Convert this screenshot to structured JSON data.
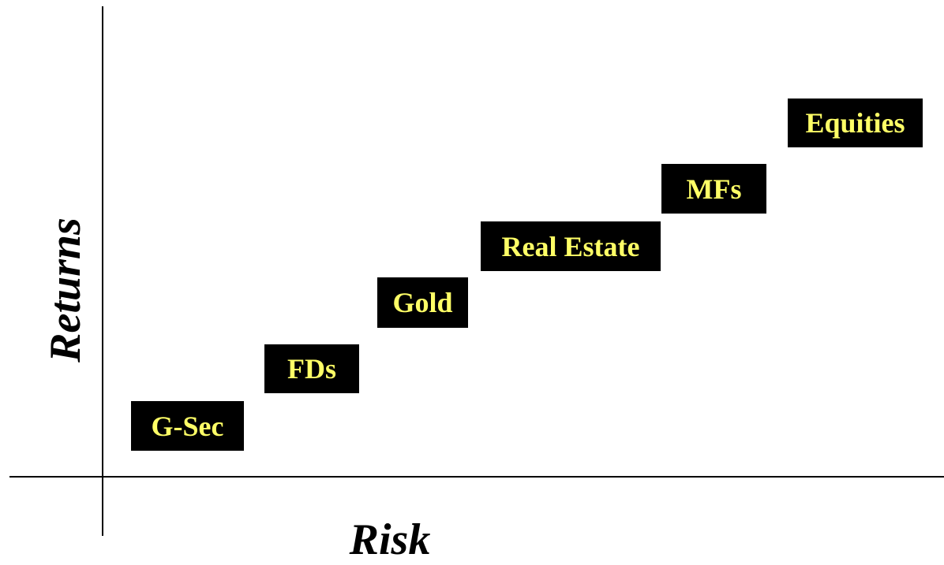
{
  "axes": {
    "y_label": "Returns",
    "x_label": "Risk"
  },
  "assets": {
    "gsec": "G-Sec",
    "fds": "FDs",
    "gold": "Gold",
    "realestate": "Real Estate",
    "mfs": "MFs",
    "equities": "Equities"
  },
  "colors": {
    "box_fill": "#000000",
    "box_text": "#ffff66",
    "axis": "#000000",
    "background": "#ffffff"
  }
}
